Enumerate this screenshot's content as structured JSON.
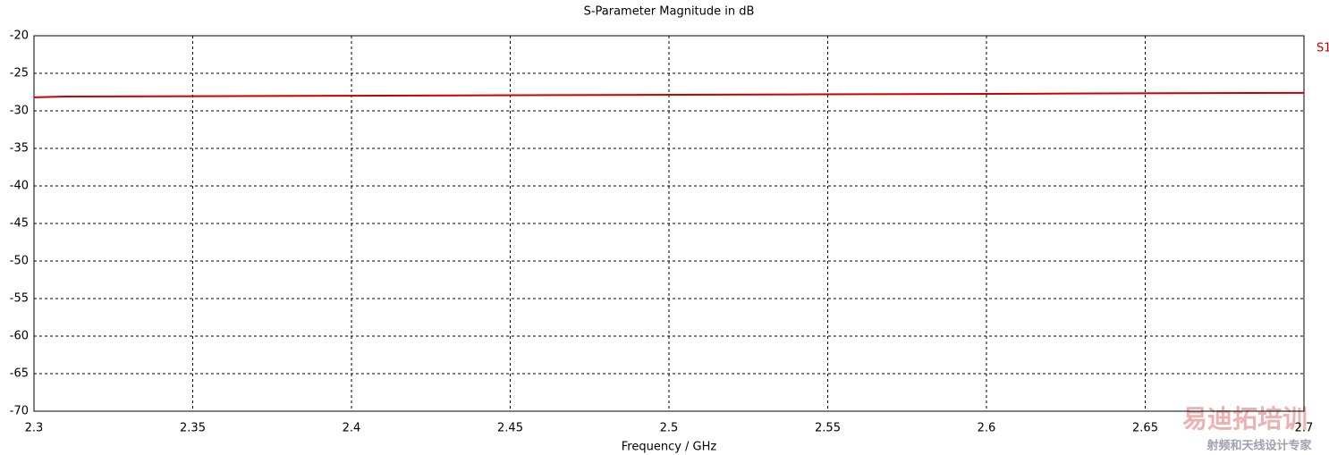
{
  "chart_data": {
    "type": "line",
    "title": "S-Parameter Magnitude in dB",
    "x_label": "Frequency / GHz",
    "x": [
      2.3,
      2.31,
      2.385,
      2.465,
      2.545,
      2.625,
      2.7
    ],
    "series": [
      {
        "name": "S1",
        "color": "#cc0000",
        "values": [
          -28.2,
          -28.1,
          -28.0,
          -27.9,
          -27.8,
          -27.7,
          -27.6
        ]
      }
    ],
    "xlim": [
      2.3,
      2.7
    ],
    "xticks": [
      2.3,
      2.35,
      2.4,
      2.45,
      2.5,
      2.55,
      2.6,
      2.65,
      2.7
    ],
    "ylim": [
      -70,
      -20
    ],
    "yticks": [
      -70,
      -65,
      -60,
      -55,
      -50,
      -45,
      -40,
      -35,
      -30,
      -25,
      -20
    ],
    "grid": true
  },
  "watermark": {
    "brand": "易迪拓培训",
    "slogan": "射频和天线设计专家"
  }
}
